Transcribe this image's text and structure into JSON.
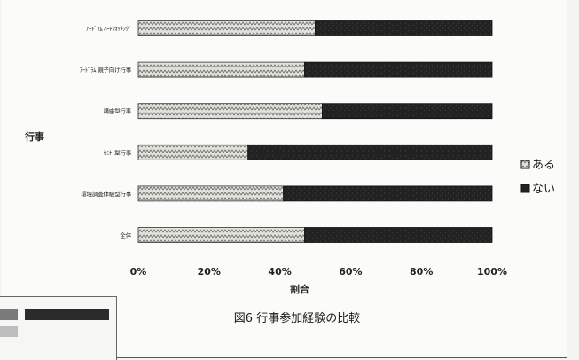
{
  "chart_data": {
    "type": "bar",
    "stacked_percent": true,
    "orientation": "horizontal",
    "caption": "図6 行事参加経験の比較",
    "ylabel": "行事",
    "xlabel": "割合",
    "xlim": [
      0,
      100
    ],
    "x_ticks": [
      "0%",
      "20%",
      "40%",
      "60%",
      "80%",
      "100%"
    ],
    "categories": [
      "ｱｰﾄﾞﾗﾑ ﾊｰﾄｳｫｯﾁﾝｸﾞ",
      "ｱｰﾄﾞﾗﾑ 親子向け行事",
      "講座型行事",
      "ｾﾐﾅｰ型行事",
      "環境調査体験型行事",
      "全体"
    ],
    "series": [
      {
        "name": "ある",
        "values": [
          50,
          47,
          52,
          31,
          41,
          47
        ]
      },
      {
        "name": "ない",
        "values": [
          50,
          53,
          48,
          69,
          59,
          53
        ]
      }
    ],
    "legend_position": "right",
    "grid": false,
    "colors": {
      "aru": "#d8d8d2",
      "nai": "#262626"
    }
  }
}
